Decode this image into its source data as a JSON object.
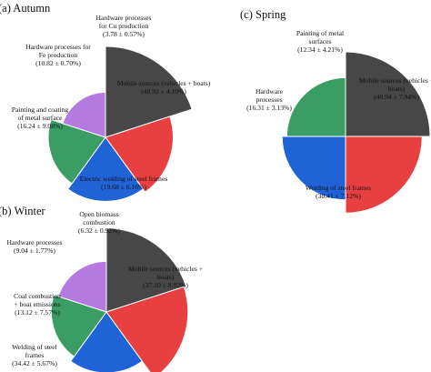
{
  "chart_data": [
    {
      "type": "pie",
      "title": "(a) Autumn",
      "variant": "rose",
      "colors": {
        "outline": "#ffffff"
      },
      "slices": [
        {
          "label_lines": [
            "Mobile sources (vehicles + boats)",
            "(48.92 ± 4.10%)"
          ],
          "value": 48.92,
          "uncertainty": 4.1,
          "color": "#474747"
        },
        {
          "label_lines": [
            "Electric welding of steel frames",
            "(19.68 ± 6.16%)"
          ],
          "value": 19.68,
          "uncertainty": 6.16,
          "color": "#e84040"
        },
        {
          "label_lines": [
            "Painting and coating",
            "of metal surface",
            "(16.24 ± 9.08%)"
          ],
          "value": 16.24,
          "uncertainty": 9.08,
          "color": "#1f63d6"
        },
        {
          "label_lines": [
            "Hardware processes for",
            "Fe production",
            "(10.82 ± 0.70%)"
          ],
          "value": 10.82,
          "uncertainty": 0.7,
          "color": "#3a9e64"
        },
        {
          "label_lines": [
            "Hardware processes",
            "for Cu production",
            "(3.78 ± 0.57%)"
          ],
          "value": 3.78,
          "uncertainty": 0.57,
          "color": "#b47ae0"
        }
      ]
    },
    {
      "type": "pie",
      "title": "(c) Spring",
      "variant": "rose",
      "colors": {
        "outline": "#ffffff"
      },
      "slices": [
        {
          "label_lines": [
            "Mobile sources (vehicles +",
            "boats)",
            "(40.94 ± 7.94%)"
          ],
          "value": 40.94,
          "uncertainty": 7.94,
          "color": "#474747"
        },
        {
          "label_lines": [
            "Welding of steel frames",
            "(30.41 ± 7.12%)"
          ],
          "value": 30.41,
          "uncertainty": 7.12,
          "color": "#e84040"
        },
        {
          "label_lines": [
            "Hardware",
            "processes",
            "(16.31 ± 3.13%)"
          ],
          "value": 16.31,
          "uncertainty": 3.13,
          "color": "#1f63d6"
        },
        {
          "label_lines": [
            "Painting of metal",
            "surfaces",
            "(12.34 ± 4.21%)"
          ],
          "value": 12.34,
          "uncertainty": 4.21,
          "color": "#3a9e64"
        }
      ]
    },
    {
      "type": "pie",
      "title": "(b) Winter",
      "variant": "rose",
      "colors": {
        "outline": "#ffffff"
      },
      "slices": [
        {
          "label_lines": [
            "Mobile sources (vehicles +",
            "boats)",
            "(37.10 ± 8.92%)"
          ],
          "value": 37.1,
          "uncertainty": 8.92,
          "color": "#474747"
        },
        {
          "label_lines": [
            "Welding of steel",
            "frames",
            "(34.42 ± 5.67%)"
          ],
          "value": 34.42,
          "uncertainty": 5.67,
          "color": "#e84040"
        },
        {
          "label_lines": [
            "Coal combustion",
            "+ boat emissions",
            "(13.12 ± 7.57%)"
          ],
          "value": 13.12,
          "uncertainty": 7.57,
          "color": "#1f63d6"
        },
        {
          "label_lines": [
            "Hardware processes",
            "(9.04 ± 1.77%)"
          ],
          "value": 9.04,
          "uncertainty": 1.77,
          "color": "#3a9e64"
        },
        {
          "label_lines": [
            "Open biomass",
            "combustion",
            "(6.32 ± 0.92%)"
          ],
          "value": 6.32,
          "uncertainty": 0.92,
          "color": "#b47ae0"
        }
      ]
    }
  ]
}
